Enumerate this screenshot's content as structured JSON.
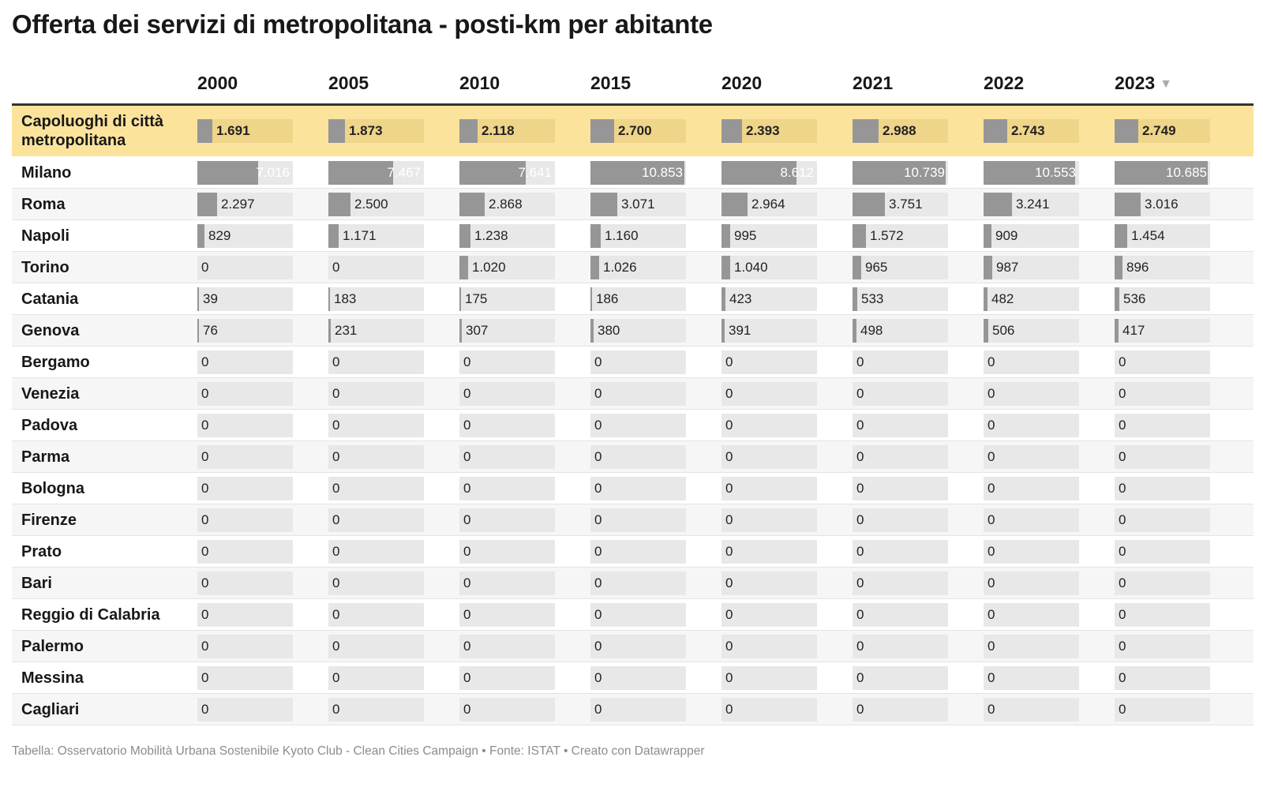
{
  "title": "Offerta dei servizi di metropolitana - posti-km per abitante",
  "footer": "Tabella: Osservatorio Mobilità Urbana Sostenibile Kyoto Club - Clean Cities Campaign • Fonte: ISTAT • Creato con Datawrapper",
  "sort_icon": "▼",
  "colors": {
    "highlight": "#fce39c",
    "bar": "#969696",
    "track": "#e8e8e8"
  },
  "chart_data": {
    "type": "table",
    "title": "Offerta dei servizi di metropolitana - posti-km per abitante",
    "columns": [
      "2000",
      "2005",
      "2010",
      "2015",
      "2020",
      "2021",
      "2022",
      "2023"
    ],
    "sorted_by": "2023",
    "sort_order": "descending",
    "bar_max": 11000,
    "rows": [
      {
        "label": "Capoluoghi di città metropolitana",
        "highlight": true,
        "values": [
          1691,
          1873,
          2118,
          2700,
          2393,
          2988,
          2743,
          2749
        ],
        "display": [
          "1.691",
          "1.873",
          "2.118",
          "2.700",
          "2.393",
          "2.988",
          "2.743",
          "2.749"
        ]
      },
      {
        "label": "Milano",
        "values": [
          7016,
          7467,
          7641,
          10853,
          8612,
          10739,
          10553,
          10685
        ],
        "display": [
          "7.016",
          "7.467",
          "7.641",
          "10.853",
          "8.612",
          "10.739",
          "10.553",
          "10.685"
        ]
      },
      {
        "label": "Roma",
        "values": [
          2297,
          2500,
          2868,
          3071,
          2964,
          3751,
          3241,
          3016
        ],
        "display": [
          "2.297",
          "2.500",
          "2.868",
          "3.071",
          "2.964",
          "3.751",
          "3.241",
          "3.016"
        ]
      },
      {
        "label": "Napoli",
        "values": [
          829,
          1171,
          1238,
          1160,
          995,
          1572,
          909,
          1454
        ],
        "display": [
          "829",
          "1.171",
          "1.238",
          "1.160",
          "995",
          "1.572",
          "909",
          "1.454"
        ]
      },
      {
        "label": "Torino",
        "values": [
          0,
          0,
          1020,
          1026,
          1040,
          965,
          987,
          896
        ],
        "display": [
          "0",
          "0",
          "1.020",
          "1.026",
          "1.040",
          "965",
          "987",
          "896"
        ]
      },
      {
        "label": "Catania",
        "values": [
          39,
          183,
          175,
          186,
          423,
          533,
          482,
          536
        ],
        "display": [
          "39",
          "183",
          "175",
          "186",
          "423",
          "533",
          "482",
          "536"
        ]
      },
      {
        "label": "Genova",
        "values": [
          76,
          231,
          307,
          380,
          391,
          498,
          506,
          417
        ],
        "display": [
          "76",
          "231",
          "307",
          "380",
          "391",
          "498",
          "506",
          "417"
        ]
      },
      {
        "label": "Bergamo",
        "values": [
          0,
          0,
          0,
          0,
          0,
          0,
          0,
          0
        ],
        "display": [
          "0",
          "0",
          "0",
          "0",
          "0",
          "0",
          "0",
          "0"
        ]
      },
      {
        "label": "Venezia",
        "values": [
          0,
          0,
          0,
          0,
          0,
          0,
          0,
          0
        ],
        "display": [
          "0",
          "0",
          "0",
          "0",
          "0",
          "0",
          "0",
          "0"
        ]
      },
      {
        "label": "Padova",
        "values": [
          0,
          0,
          0,
          0,
          0,
          0,
          0,
          0
        ],
        "display": [
          "0",
          "0",
          "0",
          "0",
          "0",
          "0",
          "0",
          "0"
        ]
      },
      {
        "label": "Parma",
        "values": [
          0,
          0,
          0,
          0,
          0,
          0,
          0,
          0
        ],
        "display": [
          "0",
          "0",
          "0",
          "0",
          "0",
          "0",
          "0",
          "0"
        ]
      },
      {
        "label": "Bologna",
        "values": [
          0,
          0,
          0,
          0,
          0,
          0,
          0,
          0
        ],
        "display": [
          "0",
          "0",
          "0",
          "0",
          "0",
          "0",
          "0",
          "0"
        ]
      },
      {
        "label": "Firenze",
        "values": [
          0,
          0,
          0,
          0,
          0,
          0,
          0,
          0
        ],
        "display": [
          "0",
          "0",
          "0",
          "0",
          "0",
          "0",
          "0",
          "0"
        ]
      },
      {
        "label": "Prato",
        "values": [
          0,
          0,
          0,
          0,
          0,
          0,
          0,
          0
        ],
        "display": [
          "0",
          "0",
          "0",
          "0",
          "0",
          "0",
          "0",
          "0"
        ]
      },
      {
        "label": "Bari",
        "values": [
          0,
          0,
          0,
          0,
          0,
          0,
          0,
          0
        ],
        "display": [
          "0",
          "0",
          "0",
          "0",
          "0",
          "0",
          "0",
          "0"
        ]
      },
      {
        "label": "Reggio di Calabria",
        "values": [
          0,
          0,
          0,
          0,
          0,
          0,
          0,
          0
        ],
        "display": [
          "0",
          "0",
          "0",
          "0",
          "0",
          "0",
          "0",
          "0"
        ]
      },
      {
        "label": "Palermo",
        "values": [
          0,
          0,
          0,
          0,
          0,
          0,
          0,
          0
        ],
        "display": [
          "0",
          "0",
          "0",
          "0",
          "0",
          "0",
          "0",
          "0"
        ]
      },
      {
        "label": "Messina",
        "values": [
          0,
          0,
          0,
          0,
          0,
          0,
          0,
          0
        ],
        "display": [
          "0",
          "0",
          "0",
          "0",
          "0",
          "0",
          "0",
          "0"
        ]
      },
      {
        "label": "Cagliari",
        "values": [
          0,
          0,
          0,
          0,
          0,
          0,
          0,
          0
        ],
        "display": [
          "0",
          "0",
          "0",
          "0",
          "0",
          "0",
          "0",
          "0"
        ]
      }
    ]
  }
}
